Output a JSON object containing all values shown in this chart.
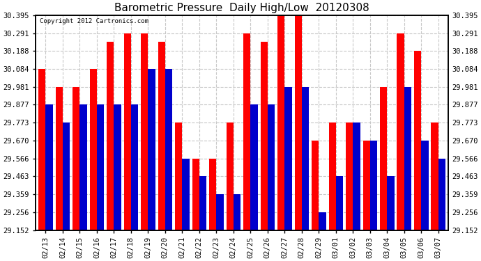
{
  "title": "Barometric Pressure  Daily High/Low  20120308",
  "copyright": "Copyright 2012 Cartronics.com",
  "dates": [
    "02/13",
    "02/14",
    "02/15",
    "02/16",
    "02/17",
    "02/18",
    "02/19",
    "02/20",
    "02/21",
    "02/22",
    "02/23",
    "02/24",
    "02/25",
    "02/26",
    "02/27",
    "02/28",
    "02/29",
    "03/01",
    "03/02",
    "03/03",
    "03/04",
    "03/05",
    "03/06",
    "03/07"
  ],
  "highs": [
    30.084,
    29.981,
    29.981,
    30.084,
    30.24,
    30.291,
    30.291,
    30.24,
    29.773,
    29.566,
    29.566,
    29.773,
    30.291,
    30.24,
    30.395,
    30.395,
    29.67,
    29.773,
    29.773,
    29.67,
    29.981,
    30.291,
    30.188,
    29.773
  ],
  "lows": [
    29.877,
    29.773,
    29.877,
    29.877,
    29.877,
    29.877,
    30.084,
    30.084,
    29.566,
    29.463,
    29.359,
    29.359,
    29.877,
    29.877,
    29.981,
    29.981,
    29.256,
    29.463,
    29.773,
    29.67,
    29.463,
    29.981,
    29.67,
    29.566
  ],
  "high_color": "#ff0000",
  "low_color": "#0000cc",
  "ylim_min": 29.152,
  "ylim_max": 30.395,
  "yticks": [
    29.152,
    29.256,
    29.359,
    29.463,
    29.566,
    29.67,
    29.773,
    29.877,
    29.981,
    30.084,
    30.188,
    30.291,
    30.395
  ],
  "background_color": "#ffffff",
  "plot_bg_color": "#ffffff",
  "grid_color": "#c8c8c8",
  "title_fontsize": 11,
  "tick_fontsize": 7.5,
  "bar_width": 0.42,
  "figwidth": 6.9,
  "figheight": 3.75,
  "dpi": 100
}
